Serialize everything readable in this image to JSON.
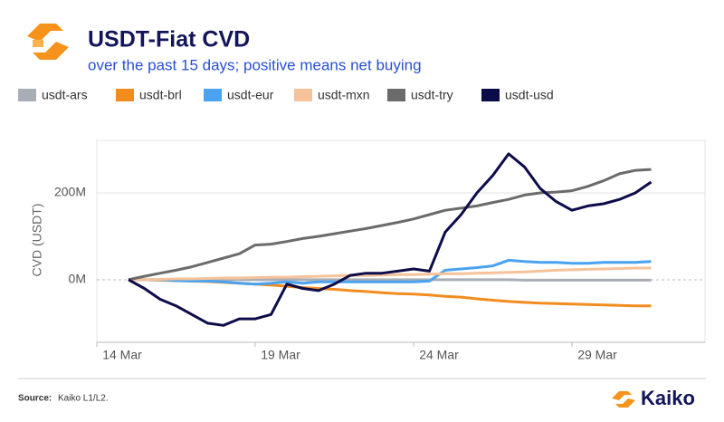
{
  "chart_data": {
    "type": "line",
    "title": "USDT-Fiat CVD",
    "subtitle": "over the past 15 days; positive means net buying",
    "y_label": "CVD (USDT)",
    "x": [
      15,
      15.5,
      16,
      16.5,
      17,
      17.5,
      18,
      18.5,
      19,
      19.5,
      20,
      20.5,
      21,
      21.5,
      22,
      22.5,
      23,
      23.5,
      24,
      24.5,
      25,
      25.5,
      26,
      26.5,
      27,
      27.5,
      28,
      28.5,
      29,
      29.5,
      30,
      30.5,
      31,
      31.5
    ],
    "xlim": [
      14,
      33.2
    ],
    "xticks": [
      {
        "value": 14,
        "label": "14 Mar"
      },
      {
        "value": 19,
        "label": "19 Mar"
      },
      {
        "value": 24,
        "label": "24 Mar"
      },
      {
        "value": 29,
        "label": "29 Mar"
      }
    ],
    "ylim": [
      -144,
      321
    ],
    "yticks": [
      {
        "value": 0,
        "label": "0M"
      },
      {
        "value": 200,
        "label": "200M"
      }
    ],
    "grid": true,
    "legend": "top",
    "series": [
      {
        "name": "usdt-ars",
        "color": "#a9adb5",
        "values": [
          0,
          0,
          0,
          0,
          0,
          0,
          0,
          0,
          0,
          0,
          0,
          0,
          0,
          0,
          0,
          0,
          0,
          0,
          0,
          0,
          0,
          0,
          0,
          0,
          0,
          -1,
          -1,
          -1,
          -1,
          -1,
          -1,
          -1,
          -1,
          -1
        ]
      },
      {
        "name": "usdt-brl",
        "color": "#f28c1e",
        "values": [
          0,
          0,
          -1,
          -2,
          -3,
          -4,
          -6,
          -8,
          -10,
          -12,
          -15,
          -18,
          -20,
          -22,
          -25,
          -27,
          -30,
          -32,
          -33,
          -35,
          -38,
          -40,
          -44,
          -47,
          -50,
          -52,
          -54,
          -55,
          -56,
          -57,
          -58,
          -59,
          -60,
          -60
        ]
      },
      {
        "name": "usdt-eur",
        "color": "#4aa3f0",
        "values": [
          0,
          0,
          0,
          -2,
          -3,
          -3,
          -5,
          -8,
          -10,
          -8,
          -5,
          -8,
          -5,
          -5,
          -5,
          -5,
          -5,
          -5,
          -5,
          -3,
          22,
          25,
          28,
          32,
          45,
          42,
          40,
          40,
          38,
          38,
          40,
          40,
          40,
          42
        ]
      },
      {
        "name": "usdt-mxn",
        "color": "#f5c29a",
        "values": [
          0,
          0,
          1,
          2,
          2,
          3,
          4,
          4,
          5,
          6,
          6,
          7,
          8,
          9,
          10,
          10,
          11,
          12,
          12,
          13,
          14,
          14,
          15,
          16,
          17,
          18,
          20,
          22,
          23,
          24,
          25,
          26,
          27,
          27
        ]
      },
      {
        "name": "usdt-try",
        "color": "#6b6b6b",
        "values": [
          0,
          8,
          15,
          22,
          30,
          40,
          50,
          60,
          80,
          82,
          88,
          95,
          100,
          106,
          112,
          118,
          125,
          132,
          140,
          150,
          160,
          165,
          170,
          178,
          185,
          195,
          200,
          202,
          205,
          215,
          228,
          244,
          252,
          254
        ]
      },
      {
        "name": "usdt-usd",
        "color": "#0d0c4a",
        "values": [
          0,
          -20,
          -45,
          -60,
          -80,
          -100,
          -105,
          -90,
          -90,
          -80,
          -10,
          -20,
          -25,
          -10,
          10,
          15,
          15,
          20,
          25,
          20,
          110,
          150,
          200,
          240,
          290,
          260,
          210,
          180,
          160,
          170,
          175,
          185,
          200,
          225
        ]
      }
    ]
  },
  "footer": {
    "source_label": "Source:",
    "source": "Kaiko L1/L2.",
    "brand": "Kaiko"
  }
}
